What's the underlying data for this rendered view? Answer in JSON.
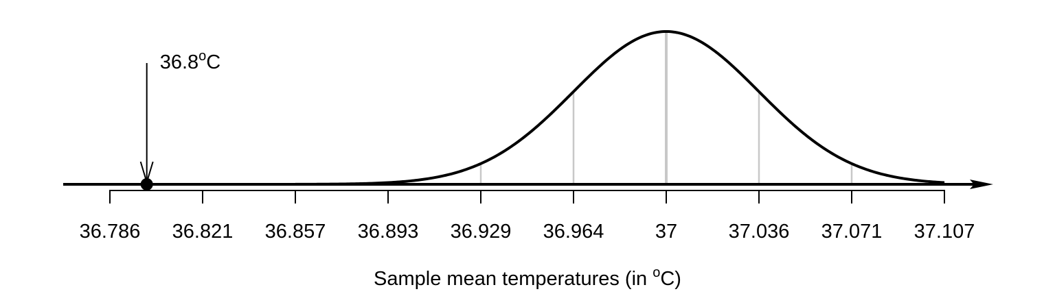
{
  "chart_data": {
    "type": "line",
    "title": "",
    "description": "Normal sampling distribution of sample mean temperatures",
    "distribution": {
      "name": "normal",
      "mean": 37,
      "sd": 0.0357
    },
    "xlabel": "Sample mean temperatures (in °C)",
    "xlabel_main": "Sample mean temperatures (in ",
    "xlabel_sup": "o",
    "xlabel_end": "C)",
    "ylabel": "",
    "xlim": [
      36.786,
      37.107
    ],
    "tick_labels": [
      "36.786",
      "36.821",
      "36.857",
      "36.893",
      "36.929",
      "36.964",
      "37",
      "37.036",
      "37.071",
      "37.107"
    ],
    "tick_values": [
      36.786,
      36.821,
      36.857,
      36.893,
      36.929,
      36.964,
      37,
      37.036,
      37.071,
      37.107
    ],
    "reference_lines_sd": [
      -3,
      -2,
      -1,
      0,
      1,
      2,
      3
    ],
    "annotation": {
      "label": "36.8°C",
      "label_main": "36.8",
      "label_sup": "o",
      "label_end": "C",
      "x": 36.8,
      "marker": "filled-circle-with-arrow"
    },
    "grid": false,
    "legend": null
  }
}
